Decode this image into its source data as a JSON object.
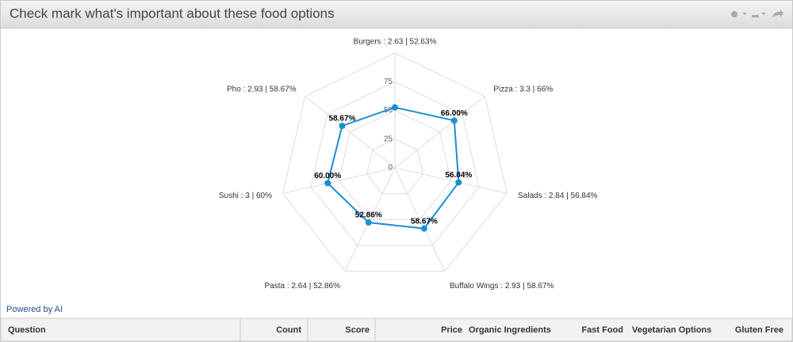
{
  "header": {
    "title": "Check mark what's important about these food options"
  },
  "chart_data": {
    "type": "radar",
    "categories": [
      "Burgers : 2.63 | 52.63%",
      "Pizza : 3.3 | 66%",
      "Salads : 2.84 | 56.84%",
      "Buffalo Wings : 2.93 | 58.67%",
      "Pasta : 2.64 | 52.86%",
      "Sushi : 3 | 60%",
      "Pho : 2.93 | 58.67%"
    ],
    "values": [
      52.63,
      66,
      56.84,
      58.67,
      52.86,
      60,
      58.67
    ],
    "value_labels": [
      null,
      "66.00%",
      "56.84%",
      "58.67%",
      "52.86%",
      "60.00%",
      "58.67%"
    ],
    "color": "#1a8fd4",
    "ylim": [
      0,
      100
    ],
    "yticks": [
      0,
      25,
      50,
      75
    ],
    "grid": true
  },
  "footer": {
    "link": "Powered by AI"
  },
  "table": {
    "columns": [
      "Question",
      "Count",
      "Score",
      "Price",
      "Organic Ingredients",
      "Fast Food",
      "Vegetarian Options",
      "Gluten Free"
    ]
  }
}
